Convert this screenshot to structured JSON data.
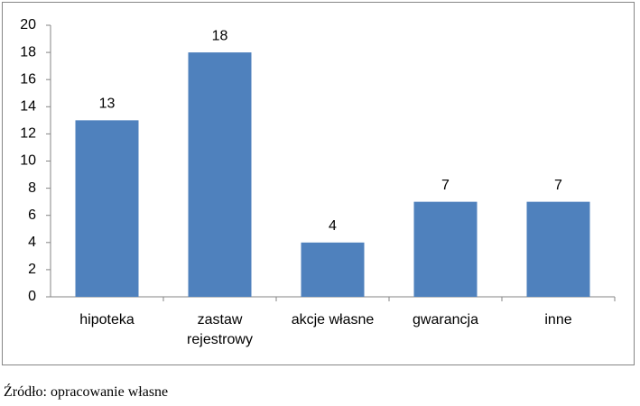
{
  "chart_data": {
    "type": "bar",
    "categories": [
      "hipoteka",
      "zastaw rejestrowy",
      "akcje własne",
      "gwarancja",
      "inne"
    ],
    "values": [
      13,
      18,
      4,
      7,
      7
    ],
    "color": "#4f81bd",
    "ylim": [
      0,
      20
    ],
    "yticks": [
      0,
      2,
      4,
      6,
      8,
      10,
      12,
      14,
      16,
      18,
      20
    ],
    "grid": false
  },
  "source": "Źródło: opracowanie własne"
}
